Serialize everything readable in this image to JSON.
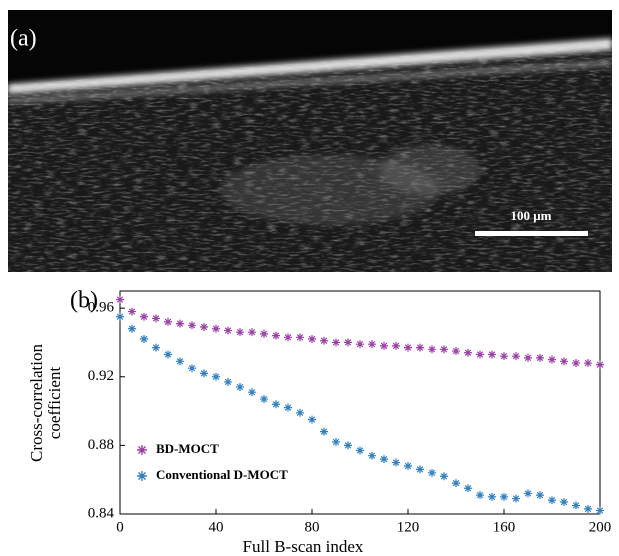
{
  "image_panel": {
    "label": "(a)",
    "scale_bar": "100 μm"
  },
  "chart_data": {
    "type": "scatter",
    "panel_label": "(b)",
    "xlabel": "Full B-scan index",
    "ylabel": [
      "Cross-correlation",
      "coefficient"
    ],
    "x": [
      0,
      5,
      10,
      15,
      20,
      25,
      30,
      35,
      40,
      45,
      50,
      55,
      60,
      65,
      70,
      75,
      80,
      85,
      90,
      95,
      100,
      105,
      110,
      115,
      120,
      125,
      130,
      135,
      140,
      145,
      150,
      155,
      160,
      165,
      170,
      175,
      180,
      185,
      190,
      195,
      200
    ],
    "series": [
      {
        "name": "BD-MOCT",
        "color": "#9b3fa6",
        "marker": "asterisk",
        "values": [
          0.965,
          0.958,
          0.955,
          0.954,
          0.952,
          0.951,
          0.95,
          0.949,
          0.948,
          0.947,
          0.946,
          0.946,
          0.945,
          0.944,
          0.943,
          0.943,
          0.942,
          0.941,
          0.94,
          0.94,
          0.939,
          0.939,
          0.938,
          0.938,
          0.937,
          0.937,
          0.936,
          0.936,
          0.935,
          0.934,
          0.933,
          0.933,
          0.932,
          0.932,
          0.931,
          0.931,
          0.93,
          0.929,
          0.928,
          0.928,
          0.927
        ]
      },
      {
        "name": "Conventional D-MOCT",
        "color": "#2f7fc1",
        "marker": "asterisk",
        "values": [
          0.955,
          0.948,
          0.942,
          0.937,
          0.933,
          0.929,
          0.925,
          0.922,
          0.92,
          0.917,
          0.914,
          0.911,
          0.907,
          0.904,
          0.902,
          0.899,
          0.895,
          0.888,
          0.882,
          0.88,
          0.877,
          0.874,
          0.872,
          0.87,
          0.868,
          0.866,
          0.864,
          0.862,
          0.858,
          0.855,
          0.851,
          0.85,
          0.85,
          0.849,
          0.852,
          0.851,
          0.848,
          0.847,
          0.845,
          0.843,
          0.842
        ]
      }
    ],
    "xlim": [
      0,
      200
    ],
    "xticks": [
      0,
      40,
      80,
      120,
      160,
      200
    ],
    "ylim": [
      0.84,
      0.97
    ],
    "yticks": [
      0.84,
      0.88,
      0.92,
      0.96
    ],
    "grid": false,
    "legend": "lower left"
  }
}
